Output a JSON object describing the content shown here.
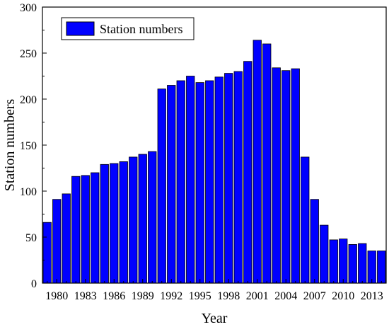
{
  "chart_data": {
    "type": "bar",
    "title": "",
    "xlabel": "Year",
    "ylabel": "Station numbers",
    "legend": {
      "label": "Station numbers",
      "position": "top-left"
    },
    "bar_color": "#0000ff",
    "bar_edge_color": "#000000",
    "ylim": [
      0,
      300
    ],
    "yticks": [
      0,
      50,
      100,
      150,
      200,
      250,
      300
    ],
    "xlim": [
      1978.5,
      2014.5
    ],
    "xticks": [
      1980,
      1983,
      1986,
      1989,
      1992,
      1995,
      1998,
      2001,
      2004,
      2007,
      2010,
      2013
    ],
    "categories": [
      1979,
      1980,
      1981,
      1982,
      1983,
      1984,
      1985,
      1986,
      1987,
      1988,
      1989,
      1990,
      1991,
      1992,
      1993,
      1994,
      1995,
      1996,
      1997,
      1998,
      1999,
      2000,
      2001,
      2002,
      2003,
      2004,
      2005,
      2006,
      2007,
      2008,
      2009,
      2010,
      2011,
      2012,
      2013,
      2014
    ],
    "series": [
      {
        "name": "Station numbers",
        "values": [
          66,
          91,
          97,
          116,
          117,
          120,
          129,
          130,
          132,
          137,
          140,
          143,
          211,
          215,
          220,
          225,
          218,
          220,
          224,
          228,
          230,
          241,
          264,
          260,
          234,
          231,
          233,
          137,
          91,
          63,
          47,
          48,
          42,
          43,
          35,
          35
        ]
      }
    ]
  }
}
